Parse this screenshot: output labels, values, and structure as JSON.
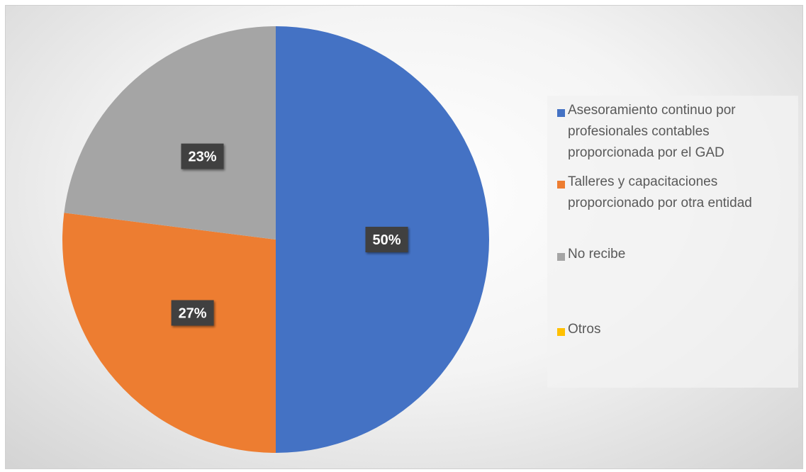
{
  "chart_data": {
    "type": "pie",
    "title": "",
    "categories": [
      "Asesoramiento continuo por profesionales contables proporcionada por el GAD",
      "Talleres y capacitaciones proporcionado por otra entidad",
      "No recibe",
      "Otros"
    ],
    "values": [
      50,
      27,
      23,
      0
    ],
    "data_labels": [
      "50%",
      "27%",
      "23%",
      ""
    ],
    "colors": [
      "#4472C4",
      "#ED7D31",
      "#A5A5A5",
      "#FFC000"
    ],
    "legend": {
      "position": "right",
      "lines": [
        [
          "Asesoramiento continuo por",
          "profesionales contables",
          "proporcionada por el GAD"
        ],
        [
          "Talleres y capacitaciones",
          "proporcionado por otra entidad"
        ],
        [
          "No recibe"
        ],
        [
          "Otros"
        ]
      ]
    }
  }
}
